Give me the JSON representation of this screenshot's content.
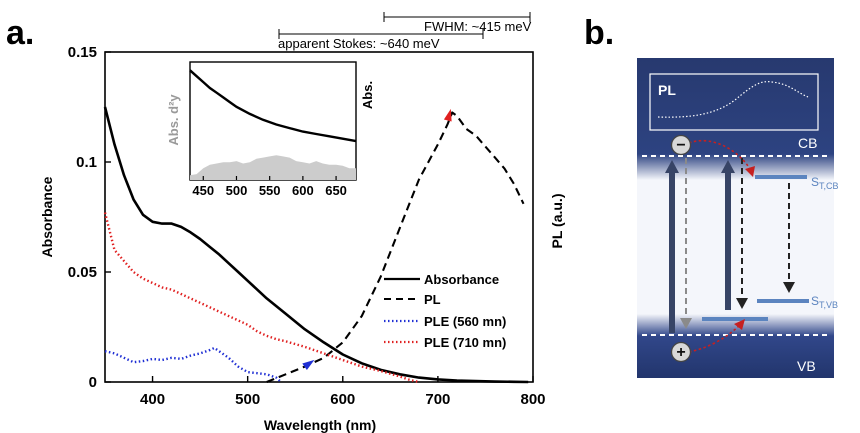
{
  "panel_a_label": "a.",
  "panel_b_label": "b.",
  "annotations": {
    "fwhm": "FWHM: ~415 meV",
    "stokes": "apparent Stokes: ~640 meV"
  },
  "chart_data": [
    {
      "type": "line",
      "xlabel": "Wavelength (nm)",
      "ylabel": "Absorbance",
      "y2label": "PL (a.u.)",
      "xlim": [
        350,
        800
      ],
      "ylim": [
        0,
        0.15
      ],
      "xticks": [
        400,
        500,
        600,
        700,
        800
      ],
      "yticks": [
        0,
        0.05,
        0.1,
        0.15
      ],
      "xtick_labels": [
        "400",
        "500",
        "600",
        "700",
        "800"
      ],
      "ytick_labels": [
        "0",
        "0.05",
        "0.1",
        "0.15"
      ],
      "legend_position": "bottom-right",
      "series": [
        {
          "name": "Absorbance",
          "color": "#000000",
          "style": "solid",
          "x": [
            350,
            360,
            370,
            380,
            390,
            400,
            410,
            420,
            430,
            440,
            450,
            460,
            470,
            480,
            490,
            500,
            520,
            540,
            560,
            580,
            600,
            620,
            640,
            660,
            680,
            700,
            720,
            740,
            760,
            780,
            795
          ],
          "y": [
            0.125,
            0.108,
            0.094,
            0.083,
            0.076,
            0.0728,
            0.072,
            0.072,
            0.0705,
            0.068,
            0.065,
            0.0615,
            0.058,
            0.054,
            0.05,
            0.046,
            0.038,
            0.031,
            0.024,
            0.018,
            0.0125,
            0.0085,
            0.0055,
            0.0035,
            0.002,
            0.0012,
            0.0007,
            0.0004,
            0.0002,
            0.0001,
            0.0
          ]
        },
        {
          "name": "PL",
          "color": "#000000",
          "style": "dashed",
          "x": [
            520,
            540,
            560,
            580,
            600,
            620,
            640,
            660,
            680,
            700,
            710,
            715,
            720,
            730,
            740,
            750,
            760,
            770,
            780,
            790
          ],
          "y": [
            0.0,
            0.0035,
            0.007,
            0.011,
            0.018,
            0.03,
            0.048,
            0.07,
            0.092,
            0.108,
            0.117,
            0.1225,
            0.121,
            0.115,
            0.112,
            0.107,
            0.102,
            0.097,
            0.09,
            0.081
          ]
        },
        {
          "name": "PLE (560 mn)",
          "color": "#1f2fd4",
          "style": "dotted",
          "x": [
            350,
            360,
            370,
            380,
            390,
            400,
            410,
            420,
            430,
            440,
            450,
            460,
            465,
            470,
            480,
            490,
            500,
            510,
            520,
            530,
            535
          ],
          "y": [
            0.014,
            0.013,
            0.011,
            0.009,
            0.0095,
            0.0105,
            0.01,
            0.011,
            0.0105,
            0.012,
            0.013,
            0.0145,
            0.0155,
            0.014,
            0.011,
            0.007,
            0.0045,
            0.004,
            0.0035,
            0.002,
            0.0
          ]
        },
        {
          "name": "PLE (710 mn)",
          "color": "#e02020",
          "style": "dotted",
          "x": [
            350,
            360,
            370,
            380,
            390,
            400,
            410,
            420,
            430,
            440,
            450,
            460,
            470,
            480,
            490,
            500,
            510,
            520,
            530,
            540,
            560,
            580,
            600,
            620,
            640,
            660,
            670,
            680
          ],
          "y": [
            0.077,
            0.06,
            0.055,
            0.05,
            0.047,
            0.045,
            0.043,
            0.042,
            0.04,
            0.038,
            0.036,
            0.034,
            0.032,
            0.03,
            0.028,
            0.026,
            0.023,
            0.021,
            0.0195,
            0.0185,
            0.016,
            0.013,
            0.01,
            0.007,
            0.005,
            0.0025,
            0.001,
            0.0
          ]
        }
      ],
      "markers": [
        {
          "color": "#1f2fd4",
          "x": 565,
          "y": 0.0085
        },
        {
          "color": "#e02020",
          "x": 712,
          "y": 0.1215
        }
      ]
    },
    {
      "type": "area",
      "role": "inset",
      "ylabel_left": "Abs. d²y",
      "ylabel_right": "Abs.",
      "xlim": [
        430,
        680
      ],
      "xticks": [
        450,
        500,
        550,
        600,
        650
      ],
      "xtick_labels": [
        "450",
        "500",
        "550",
        "600",
        "650"
      ],
      "series": [
        {
          "name": "Abs.",
          "color": "#000000",
          "x": [
            430,
            440,
            450,
            460,
            470,
            480,
            490,
            500,
            520,
            540,
            560,
            580,
            600,
            620,
            640,
            660,
            680
          ],
          "y": [
            0.93,
            0.88,
            0.83,
            0.78,
            0.74,
            0.7,
            0.66,
            0.62,
            0.56,
            0.51,
            0.47,
            0.44,
            0.41,
            0.39,
            0.37,
            0.35,
            0.33
          ]
        },
        {
          "name": "Abs. d²y",
          "color": "#cccccc",
          "x": [
            430,
            440,
            450,
            460,
            470,
            480,
            490,
            500,
            510,
            520,
            530,
            540,
            550,
            560,
            570,
            580,
            590,
            600,
            610,
            620,
            630,
            640,
            650,
            660,
            670,
            680
          ],
          "y": [
            0.04,
            0.05,
            0.1,
            0.13,
            0.14,
            0.15,
            0.15,
            0.16,
            0.14,
            0.15,
            0.18,
            0.19,
            0.2,
            0.21,
            0.2,
            0.19,
            0.16,
            0.15,
            0.14,
            0.16,
            0.14,
            0.13,
            0.13,
            0.12,
            0.1,
            0.1
          ]
        }
      ]
    }
  ],
  "diagram": {
    "pl_label": "PL",
    "cb_label": "CB",
    "vb_label": "VB",
    "stcb_main": "S",
    "stcb_sub": "T,CB",
    "stvb_main": "S",
    "stvb_sub": "T,VB",
    "minus_sign": "−",
    "plus_sign": "+",
    "colors": {
      "band": "#2b3f7d",
      "band_light": "#4e63a3",
      "state": "#5b84bf",
      "accent": "#c62020"
    }
  }
}
